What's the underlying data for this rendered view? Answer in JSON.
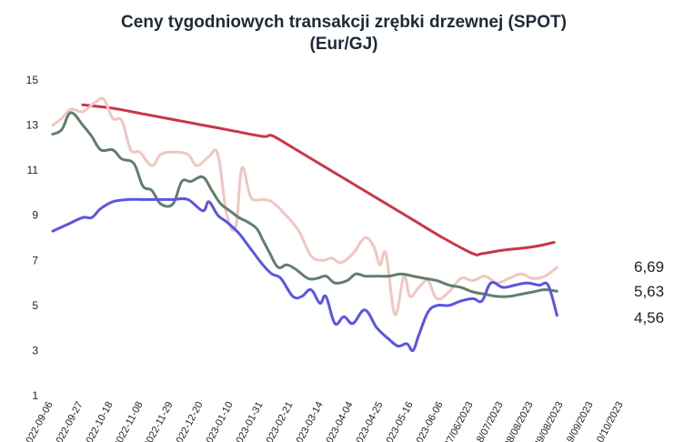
{
  "chart_data": {
    "type": "line",
    "title": "Ceny tygodniowych transakcji zrębki drzewnej (SPOT)",
    "subtitle": "(Eur/GJ)",
    "ylim": [
      1,
      15
    ],
    "yticks": [
      "1",
      "3",
      "5",
      "7",
      "9",
      "11",
      "13",
      "15"
    ],
    "grid": false,
    "x_tick_labels": [
      "2022-09-06",
      "2022-09-27",
      "2022-10-18",
      "2022-11-08",
      "2022-11-29",
      "2022-12-20",
      "2023-01-10",
      "2023-01-31",
      "2023-02-21",
      "2023-03-14",
      "2023-04-04",
      "2023-04-25",
      "2023-05-16",
      "2023-06-06",
      "27/06/2023",
      "18/07/2023",
      "08/08/2023",
      "29/08/2023",
      "19/09/2023",
      "10/10/2023"
    ],
    "series": [
      {
        "color": "#c8374a",
        "end_label": "",
        "points": [
          [
            1.0,
            13.9
          ],
          [
            2.0,
            13.75
          ],
          [
            3.0,
            13.5
          ],
          [
            4.0,
            13.25
          ],
          [
            5.0,
            13.0
          ],
          [
            6.0,
            12.75
          ],
          [
            7.0,
            12.5
          ],
          [
            7.25,
            12.55
          ],
          [
            7.5,
            12.4
          ],
          [
            8.0,
            12.0
          ],
          [
            9.0,
            11.2
          ],
          [
            10.0,
            10.4
          ],
          [
            11.0,
            9.6
          ],
          [
            12.0,
            8.8
          ],
          [
            13.0,
            8.0
          ],
          [
            14.0,
            7.3
          ],
          [
            14.3,
            7.3
          ],
          [
            15.0,
            7.45
          ],
          [
            16.0,
            7.6
          ],
          [
            16.7,
            7.8
          ]
        ]
      },
      {
        "color": "#f0c6c3",
        "end_label": "6,69",
        "points": [
          [
            0.0,
            13.0
          ],
          [
            0.3,
            13.3
          ],
          [
            0.6,
            13.7
          ],
          [
            1.0,
            13.6
          ],
          [
            1.4,
            14.0
          ],
          [
            1.7,
            14.15
          ],
          [
            2.0,
            13.3
          ],
          [
            2.3,
            13.2
          ],
          [
            2.6,
            11.9
          ],
          [
            2.9,
            11.8
          ],
          [
            3.3,
            11.2
          ],
          [
            3.6,
            11.7
          ],
          [
            4.0,
            11.8
          ],
          [
            4.5,
            11.7
          ],
          [
            4.8,
            11.2
          ],
          [
            5.2,
            11.6
          ],
          [
            5.5,
            11.7
          ],
          [
            5.8,
            9.0
          ],
          [
            6.1,
            8.5
          ],
          [
            6.3,
            11.1
          ],
          [
            6.6,
            9.8
          ],
          [
            7.0,
            9.7
          ],
          [
            7.3,
            9.6
          ],
          [
            7.7,
            9.1
          ],
          [
            8.2,
            8.3
          ],
          [
            8.6,
            7.2
          ],
          [
            9.0,
            7.0
          ],
          [
            9.3,
            7.1
          ],
          [
            9.6,
            6.9
          ],
          [
            10.0,
            7.3
          ],
          [
            10.4,
            8.0
          ],
          [
            10.7,
            7.6
          ],
          [
            10.9,
            6.8
          ],
          [
            11.1,
            7.3
          ],
          [
            11.4,
            4.6
          ],
          [
            11.7,
            6.3
          ],
          [
            11.9,
            5.4
          ],
          [
            12.2,
            5.8
          ],
          [
            12.5,
            6.1
          ],
          [
            12.8,
            5.3
          ],
          [
            13.2,
            5.6
          ],
          [
            13.6,
            6.2
          ],
          [
            14.0,
            6.1
          ],
          [
            14.4,
            6.3
          ],
          [
            14.8,
            6.0
          ],
          [
            15.2,
            6.2
          ],
          [
            15.6,
            6.4
          ],
          [
            16.0,
            6.2
          ],
          [
            16.4,
            6.3
          ],
          [
            16.8,
            6.69
          ]
        ]
      },
      {
        "color": "#637e6c",
        "end_label": "5,63",
        "points": [
          [
            0.0,
            12.6
          ],
          [
            0.3,
            12.8
          ],
          [
            0.6,
            13.55
          ],
          [
            1.0,
            13.0
          ],
          [
            1.3,
            12.5
          ],
          [
            1.6,
            11.9
          ],
          [
            2.0,
            11.9
          ],
          [
            2.3,
            11.5
          ],
          [
            2.7,
            11.3
          ],
          [
            3.0,
            10.3
          ],
          [
            3.3,
            10.1
          ],
          [
            3.6,
            9.5
          ],
          [
            4.0,
            9.5
          ],
          [
            4.3,
            10.5
          ],
          [
            4.6,
            10.5
          ],
          [
            5.0,
            10.7
          ],
          [
            5.3,
            10.1
          ],
          [
            5.6,
            9.5
          ],
          [
            5.9,
            9.2
          ],
          [
            6.2,
            8.9
          ],
          [
            6.5,
            8.7
          ],
          [
            6.8,
            8.4
          ],
          [
            7.0,
            7.9
          ],
          [
            7.2,
            7.4
          ],
          [
            7.5,
            6.7
          ],
          [
            7.8,
            6.8
          ],
          [
            8.1,
            6.6
          ],
          [
            8.5,
            6.2
          ],
          [
            8.8,
            6.2
          ],
          [
            9.1,
            6.3
          ],
          [
            9.4,
            6.0
          ],
          [
            9.8,
            6.1
          ],
          [
            10.1,
            6.4
          ],
          [
            10.4,
            6.3
          ],
          [
            10.8,
            6.3
          ],
          [
            11.2,
            6.3
          ],
          [
            11.6,
            6.4
          ],
          [
            12.0,
            6.3
          ],
          [
            12.4,
            6.2
          ],
          [
            12.8,
            6.1
          ],
          [
            13.2,
            5.9
          ],
          [
            13.6,
            5.8
          ],
          [
            14.0,
            5.6
          ],
          [
            14.4,
            5.5
          ],
          [
            14.8,
            5.4
          ],
          [
            15.2,
            5.4
          ],
          [
            15.6,
            5.5
          ],
          [
            16.0,
            5.6
          ],
          [
            16.4,
            5.7
          ],
          [
            16.8,
            5.63
          ]
        ]
      },
      {
        "color": "#5a55e3",
        "end_label": "4,56",
        "points": [
          [
            0.0,
            8.3
          ],
          [
            0.5,
            8.6
          ],
          [
            1.0,
            8.9
          ],
          [
            1.3,
            8.9
          ],
          [
            1.6,
            9.3
          ],
          [
            2.0,
            9.6
          ],
          [
            2.5,
            9.7
          ],
          [
            3.0,
            9.7
          ],
          [
            3.5,
            9.7
          ],
          [
            4.0,
            9.7
          ],
          [
            4.5,
            9.7
          ],
          [
            5.0,
            9.2
          ],
          [
            5.2,
            9.6
          ],
          [
            5.5,
            9.0
          ],
          [
            5.8,
            8.7
          ],
          [
            6.2,
            8.2
          ],
          [
            6.6,
            7.5
          ],
          [
            7.0,
            6.8
          ],
          [
            7.3,
            6.4
          ],
          [
            7.6,
            6.2
          ],
          [
            8.0,
            5.4
          ],
          [
            8.3,
            5.4
          ],
          [
            8.6,
            5.7
          ],
          [
            8.9,
            5.1
          ],
          [
            9.1,
            5.4
          ],
          [
            9.4,
            4.2
          ],
          [
            9.7,
            4.5
          ],
          [
            10.0,
            4.2
          ],
          [
            10.4,
            4.8
          ],
          [
            10.8,
            4.0
          ],
          [
            11.2,
            3.5
          ],
          [
            11.5,
            3.2
          ],
          [
            11.8,
            3.3
          ],
          [
            12.0,
            3.0
          ],
          [
            12.2,
            3.7
          ],
          [
            12.5,
            4.7
          ],
          [
            12.8,
            5.0
          ],
          [
            13.2,
            5.0
          ],
          [
            13.6,
            5.2
          ],
          [
            14.0,
            5.3
          ],
          [
            14.3,
            5.2
          ],
          [
            14.6,
            6.0
          ],
          [
            15.0,
            5.8
          ],
          [
            15.4,
            5.9
          ],
          [
            15.8,
            6.0
          ],
          [
            16.2,
            5.9
          ],
          [
            16.5,
            5.9
          ],
          [
            16.8,
            4.56
          ]
        ]
      }
    ]
  }
}
